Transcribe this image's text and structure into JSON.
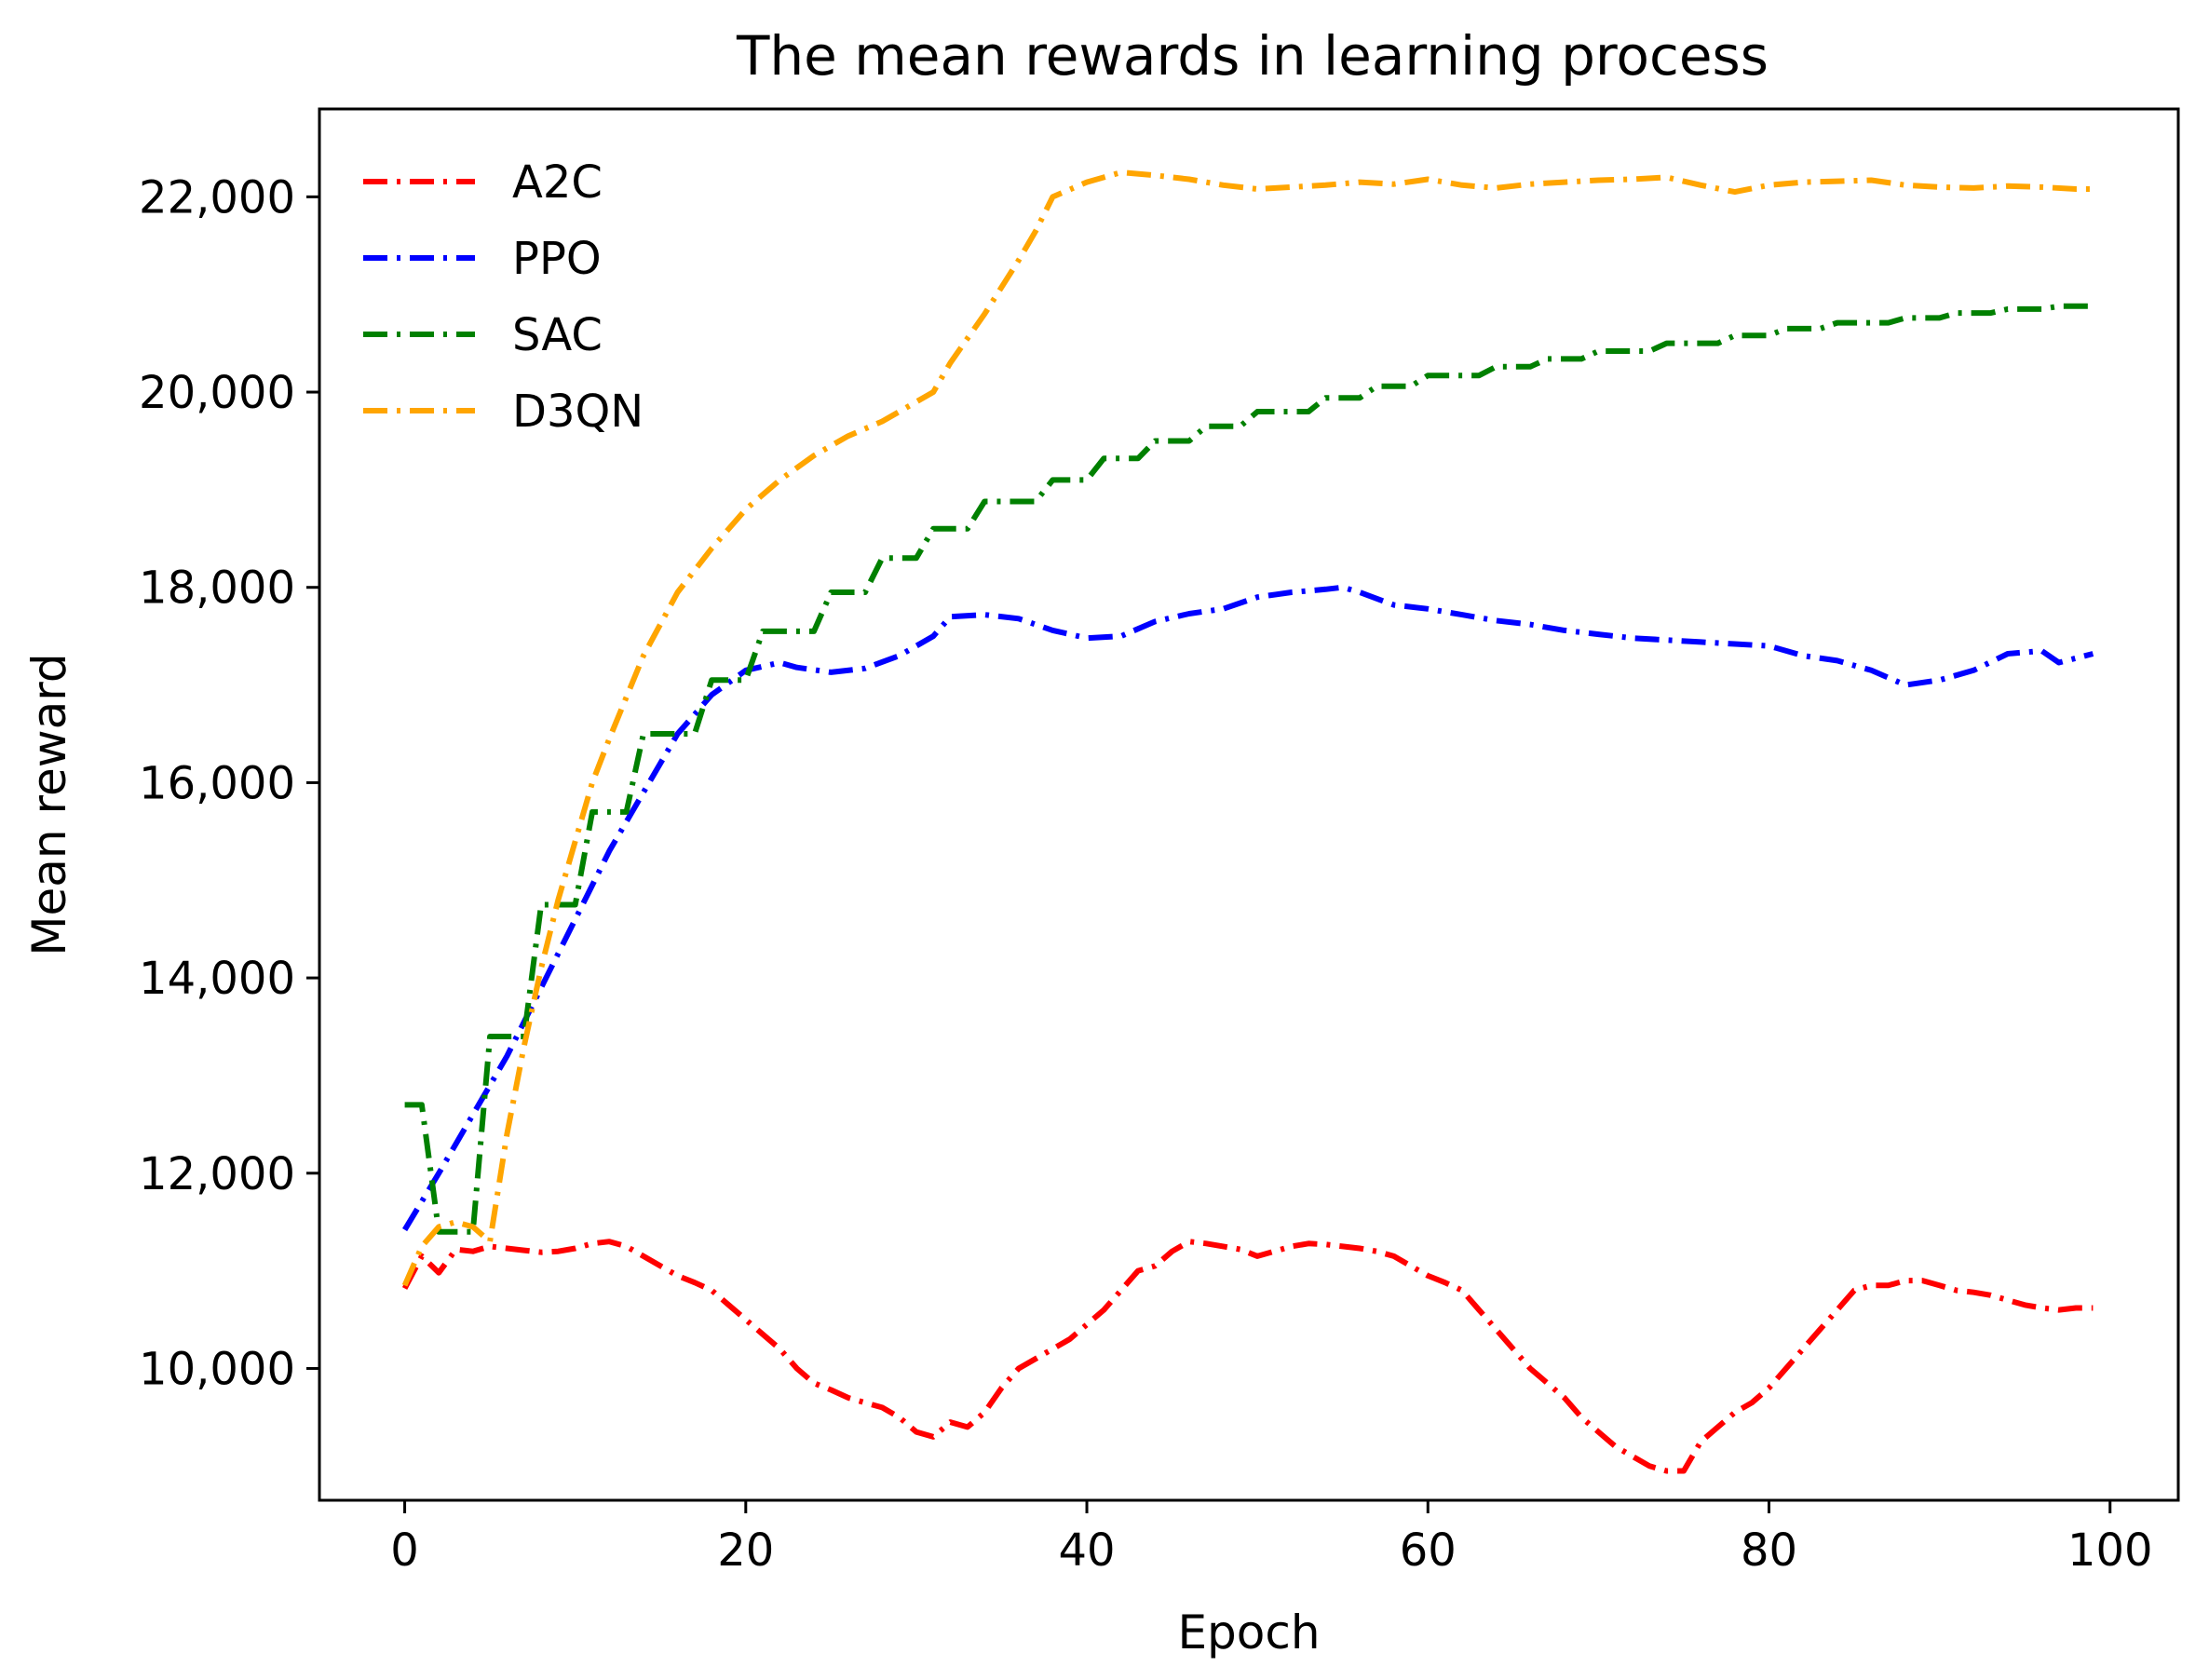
{
  "chart_data": {
    "type": "line",
    "title": "The mean rewards in learning process",
    "xlabel": "Epoch",
    "ylabel": "Mean reward",
    "xlim": [
      -5,
      104
    ],
    "ylim": [
      8650,
      22900
    ],
    "x_ticks": [
      0,
      20,
      40,
      60,
      80,
      100
    ],
    "x_tick_labels": [
      "0",
      "20",
      "40",
      "60",
      "80",
      "100"
    ],
    "y_ticks": [
      10000,
      12000,
      14000,
      16000,
      18000,
      20000,
      22000
    ],
    "y_tick_labels": [
      "10,000",
      "12,000",
      "14,000",
      "16,000",
      "18,000",
      "20,000",
      "22,000"
    ],
    "grid": false,
    "legend_position": "top-left",
    "line_style": "dash-dot",
    "series": [
      {
        "name": "A2C",
        "color": "#ff0000",
        "x": [
          0,
          1,
          2,
          3,
          4,
          5,
          6,
          7,
          8,
          9,
          10,
          11,
          12,
          13,
          14,
          15,
          16,
          17,
          18,
          19,
          20,
          21,
          22,
          23,
          24,
          25,
          26,
          27,
          28,
          29,
          30,
          31,
          32,
          33,
          34,
          35,
          36,
          37,
          38,
          39,
          40,
          41,
          42,
          43,
          44,
          45,
          46,
          47,
          48,
          49,
          50,
          51,
          52,
          53,
          54,
          55,
          56,
          57,
          58,
          59,
          60,
          61,
          62,
          63,
          64,
          65,
          66,
          67,
          68,
          69,
          70,
          71,
          72,
          73,
          74,
          75,
          76,
          77,
          78,
          79,
          80,
          81,
          82,
          83,
          84,
          85,
          86,
          87,
          88,
          89,
          90,
          91,
          92,
          93,
          94,
          95,
          96,
          97,
          98,
          99
        ],
        "y": [
          10820,
          11150,
          10980,
          11220,
          11200,
          11250,
          11230,
          11210,
          11190,
          11200,
          11230,
          11280,
          11300,
          11250,
          11150,
          11050,
          10950,
          10880,
          10800,
          10650,
          10500,
          10350,
          10200,
          10000,
          9850,
          9780,
          9700,
          9650,
          9600,
          9500,
          9350,
          9300,
          9450,
          9400,
          9550,
          9800,
          10000,
          10100,
          10200,
          10300,
          10450,
          10600,
          10800,
          11000,
          11050,
          11200,
          11300,
          11280,
          11250,
          11220,
          11150,
          11200,
          11250,
          11280,
          11270,
          11250,
          11230,
          11200,
          11150,
          11050,
          10950,
          10880,
          10800,
          10600,
          10400,
          10200,
          10000,
          9850,
          9700,
          9500,
          9350,
          9200,
          9100,
          9000,
          8950,
          8950,
          9250,
          9400,
          9550,
          9650,
          9800,
          10000,
          10200,
          10400,
          10600,
          10800,
          10850,
          10850,
          10900,
          10900,
          10850,
          10800,
          10780,
          10750,
          10700,
          10650,
          10620,
          10600,
          10620,
          10620
        ]
      },
      {
        "name": "PPO",
        "color": "#0000ff",
        "x": [
          0,
          2,
          4,
          6,
          8,
          10,
          12,
          14,
          16,
          18,
          20,
          22,
          23,
          25,
          27,
          29,
          31,
          32,
          34,
          36,
          38,
          40,
          42,
          44,
          46,
          48,
          50,
          52,
          54,
          55,
          56,
          58,
          60,
          62,
          64,
          66,
          68,
          70,
          72,
          74,
          76,
          78,
          80,
          82,
          84,
          86,
          88,
          90,
          92,
          94,
          96,
          97,
          99
        ],
        "y": [
          11420,
          12000,
          12600,
          13200,
          13900,
          14600,
          15300,
          15900,
          16500,
          16900,
          17150,
          17230,
          17180,
          17130,
          17170,
          17300,
          17500,
          17700,
          17720,
          17680,
          17560,
          17480,
          17500,
          17650,
          17730,
          17780,
          17900,
          17950,
          17980,
          18000,
          17950,
          17820,
          17780,
          17720,
          17660,
          17620,
          17560,
          17520,
          17480,
          17460,
          17440,
          17420,
          17400,
          17300,
          17250,
          17150,
          17000,
          17050,
          17150,
          17320,
          17350,
          17230,
          17320
        ]
      },
      {
        "name": "SAC",
        "color": "#008000",
        "x": [
          0,
          1,
          2,
          3,
          4,
          5,
          6,
          7,
          8,
          9,
          10,
          11,
          12,
          13,
          14,
          15,
          16,
          17,
          18,
          19,
          20,
          21,
          22,
          23,
          24,
          25,
          26,
          27,
          28,
          29,
          30,
          31,
          32,
          33,
          34,
          35,
          36,
          37,
          38,
          39,
          40,
          41,
          42,
          43,
          44,
          45,
          46,
          47,
          48,
          49,
          50,
          51,
          52,
          53,
          54,
          55,
          56,
          57,
          58,
          59,
          60,
          61,
          62,
          63,
          64,
          65,
          66,
          67,
          68,
          69,
          70,
          71,
          72,
          73,
          74,
          75,
          76,
          77,
          78,
          79,
          80,
          81,
          82,
          83,
          84,
          85,
          86,
          87,
          88,
          89,
          90,
          91,
          92,
          93,
          94,
          95,
          96,
          97,
          98,
          99
        ],
        "y": [
          12700,
          12700,
          11400,
          11400,
          11400,
          13400,
          13400,
          13400,
          14750,
          14750,
          14750,
          15700,
          15700,
          15700,
          16500,
          16500,
          16500,
          16500,
          17050,
          17050,
          17050,
          17550,
          17550,
          17550,
          17550,
          17950,
          17950,
          17950,
          18300,
          18300,
          18300,
          18600,
          18600,
          18600,
          18880,
          18880,
          18880,
          18880,
          19100,
          19100,
          19100,
          19320,
          19320,
          19320,
          19500,
          19500,
          19500,
          19650,
          19650,
          19650,
          19800,
          19800,
          19800,
          19800,
          19940,
          19940,
          19940,
          20060,
          20060,
          20060,
          20170,
          20170,
          20170,
          20170,
          20260,
          20260,
          20260,
          20340,
          20340,
          20340,
          20420,
          20420,
          20420,
          20420,
          20500,
          20500,
          20500,
          20500,
          20580,
          20580,
          20580,
          20650,
          20650,
          20650,
          20710,
          20710,
          20710,
          20710,
          20760,
          20760,
          20760,
          20810,
          20810,
          20810,
          20850,
          20850,
          20850,
          20880,
          20880,
          20880
        ]
      },
      {
        "name": "D3QN",
        "color": "#ffa500",
        "x": [
          0,
          1,
          2,
          3,
          4,
          5,
          6,
          7,
          8,
          9,
          10,
          11,
          12,
          14,
          16,
          18,
          20,
          22,
          24,
          26,
          28,
          30,
          31,
          32,
          34,
          36,
          37,
          38,
          40,
          42,
          44,
          46,
          48,
          50,
          52,
          54,
          56,
          58,
          60,
          62,
          64,
          66,
          68,
          70,
          72,
          74,
          76,
          78,
          80,
          82,
          84,
          86,
          88,
          90,
          92,
          94,
          96,
          98,
          99
        ],
        "y": [
          10850,
          11250,
          11450,
          11500,
          11450,
          11300,
          12400,
          13300,
          14100,
          14800,
          15400,
          16000,
          16450,
          17300,
          17950,
          18400,
          18800,
          19100,
          19350,
          19550,
          19700,
          19900,
          20000,
          20300,
          20800,
          21350,
          21650,
          22000,
          22150,
          22250,
          22220,
          22180,
          22120,
          22080,
          22100,
          22120,
          22150,
          22130,
          22180,
          22120,
          22090,
          22130,
          22150,
          22170,
          22180,
          22200,
          22120,
          22050,
          22120,
          22150,
          22160,
          22170,
          22120,
          22100,
          22090,
          22110,
          22100,
          22080,
          22080
        ]
      }
    ]
  }
}
